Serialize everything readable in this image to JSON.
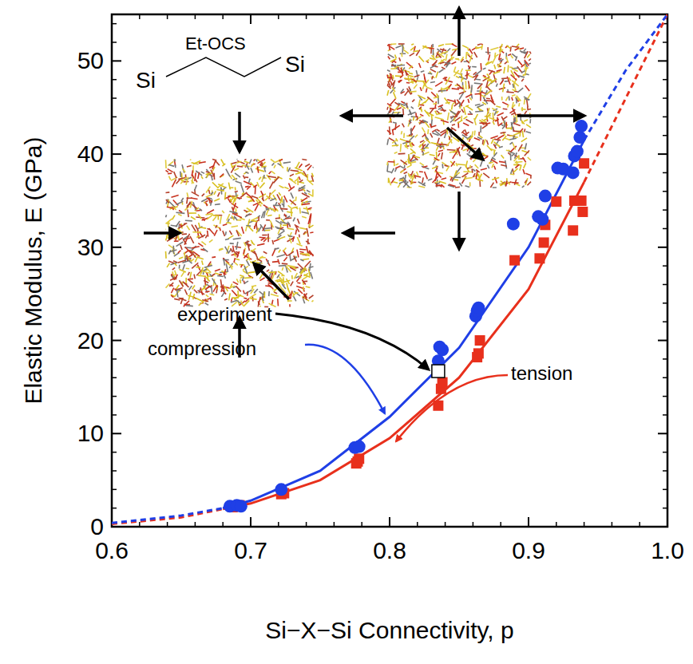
{
  "chart_data": {
    "type": "scatter",
    "x_label": "Si−X−Si Connectivity, p",
    "y_label": "Elastic Modulus, E (GPa)",
    "xlim": [
      0.6,
      1.0
    ],
    "ylim": [
      0,
      55
    ],
    "xticks": [
      0.6,
      0.7,
      0.8,
      0.9,
      {
        "value": 1,
        "label": "1.0"
      }
    ],
    "yticks": [
      0,
      10,
      20,
      30,
      40,
      50
    ],
    "grid": false,
    "series": [
      {
        "name": "tension",
        "type": "line",
        "line_style": "solid",
        "color": "#e8301c",
        "x": [
          0.68,
          0.7,
          0.75,
          0.8,
          0.85,
          0.9,
          0.94
        ],
        "values": [
          1.9,
          2.5,
          5.0,
          9.5,
          16.0,
          25.5,
          37.0
        ]
      },
      {
        "name": "compression",
        "type": "line",
        "line_style": "solid",
        "color": "#1f3fe6",
        "x": [
          0.68,
          0.7,
          0.75,
          0.8,
          0.85,
          0.9,
          0.94
        ],
        "values": [
          2.0,
          2.8,
          6.0,
          11.8,
          19.2,
          30.0,
          41.5
        ]
      },
      {
        "type": "line",
        "line_style": "dashed",
        "color": "#e8301c",
        "x": [
          0.6,
          0.65,
          0.68
        ],
        "values": [
          0.3,
          1.0,
          1.9
        ]
      },
      {
        "type": "line",
        "line_style": "dashed",
        "color": "#e8301c",
        "x": [
          0.94,
          0.97,
          1.0
        ],
        "values": [
          37.0,
          46.0,
          55.0
        ]
      },
      {
        "type": "line",
        "line_style": "dashed",
        "color": "#1f3fe6",
        "x": [
          0.6,
          0.65,
          0.68
        ],
        "values": [
          0.4,
          1.2,
          2.0
        ]
      },
      {
        "type": "line",
        "line_style": "dashed",
        "color": "#1f3fe6",
        "x": [
          0.94,
          0.97,
          1.0
        ],
        "values": [
          41.5,
          49.0,
          55.0
        ]
      },
      {
        "type": "scatter",
        "marker": "square",
        "color": "#e8301c",
        "x": [
          0.687,
          0.692,
          0.722,
          0.724,
          0.776,
          0.778,
          0.777,
          0.835,
          0.837,
          0.838,
          0.863,
          0.864,
          0.865,
          0.89,
          0.908,
          0.911,
          0.912,
          0.92,
          0.932,
          0.933,
          0.938,
          0.939,
          0.94
        ],
        "values": [
          2.1,
          2.3,
          3.5,
          3.6,
          6.8,
          7.3,
          7.0,
          13.0,
          14.8,
          15.5,
          18.2,
          18.6,
          20.0,
          28.6,
          28.8,
          30.5,
          32.4,
          34.9,
          31.8,
          35.0,
          35.0,
          33.8,
          39.0
        ]
      },
      {
        "type": "scatter",
        "marker": "circle",
        "color": "#1f3fe6",
        "x": [
          0.685,
          0.69,
          0.693,
          0.722,
          0.775,
          0.778,
          0.835,
          0.836,
          0.838,
          0.862,
          0.863,
          0.864,
          0.889,
          0.907,
          0.91,
          0.912,
          0.921,
          0.925,
          0.932,
          0.933,
          0.935,
          0.937,
          0.938
        ],
        "values": [
          2.2,
          2.3,
          2.2,
          4.0,
          8.5,
          8.6,
          17.8,
          19.3,
          19.0,
          22.6,
          23.2,
          23.5,
          32.5,
          33.3,
          33.0,
          35.5,
          38.5,
          38.4,
          38.0,
          39.8,
          40.3,
          41.8,
          43.0
        ]
      }
    ],
    "annotations": [
      {
        "text": "experiment",
        "x": 0.835,
        "y": 16.7,
        "marker": "square"
      }
    ],
    "inset_labels": [
      "Et-OCS",
      "Si",
      "Si"
    ]
  }
}
